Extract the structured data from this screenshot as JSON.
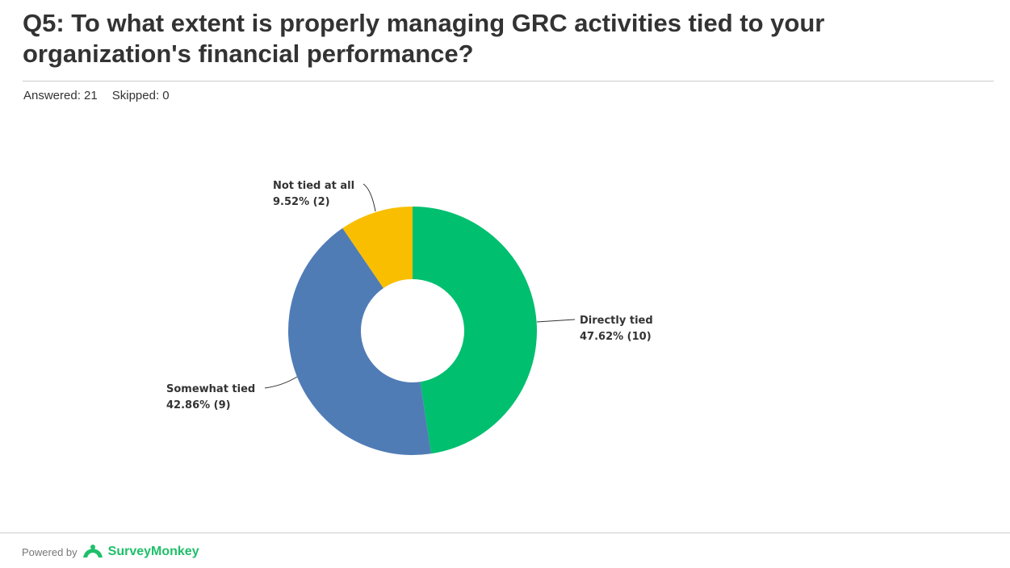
{
  "header": {
    "title": "Q5: To what extent is properly managing GRC activities tied to your organization's financial performance?",
    "answered_label": "Answered: 21",
    "skipped_label": "Skipped: 0"
  },
  "footer": {
    "powered_by": "Powered by",
    "brand": "SurveyMonkey",
    "brand_mark": "·"
  },
  "chart_data": {
    "type": "pie",
    "donut": true,
    "title": "Q5: To what extent is properly managing GRC activities tied to your organization's financial performance?",
    "slices": [
      {
        "name": "Directly tied",
        "percent": 47.62,
        "count": 10,
        "label": "47.62% (10)",
        "color": "#00bf6f"
      },
      {
        "name": "Somewhat tied",
        "percent": 42.86,
        "count": 9,
        "label": "42.86% (9)",
        "color": "#507cb6"
      },
      {
        "name": "Not tied at all",
        "percent": 9.52,
        "count": 2,
        "label": "9.52% (2)",
        "color": "#f9be00"
      }
    ]
  }
}
